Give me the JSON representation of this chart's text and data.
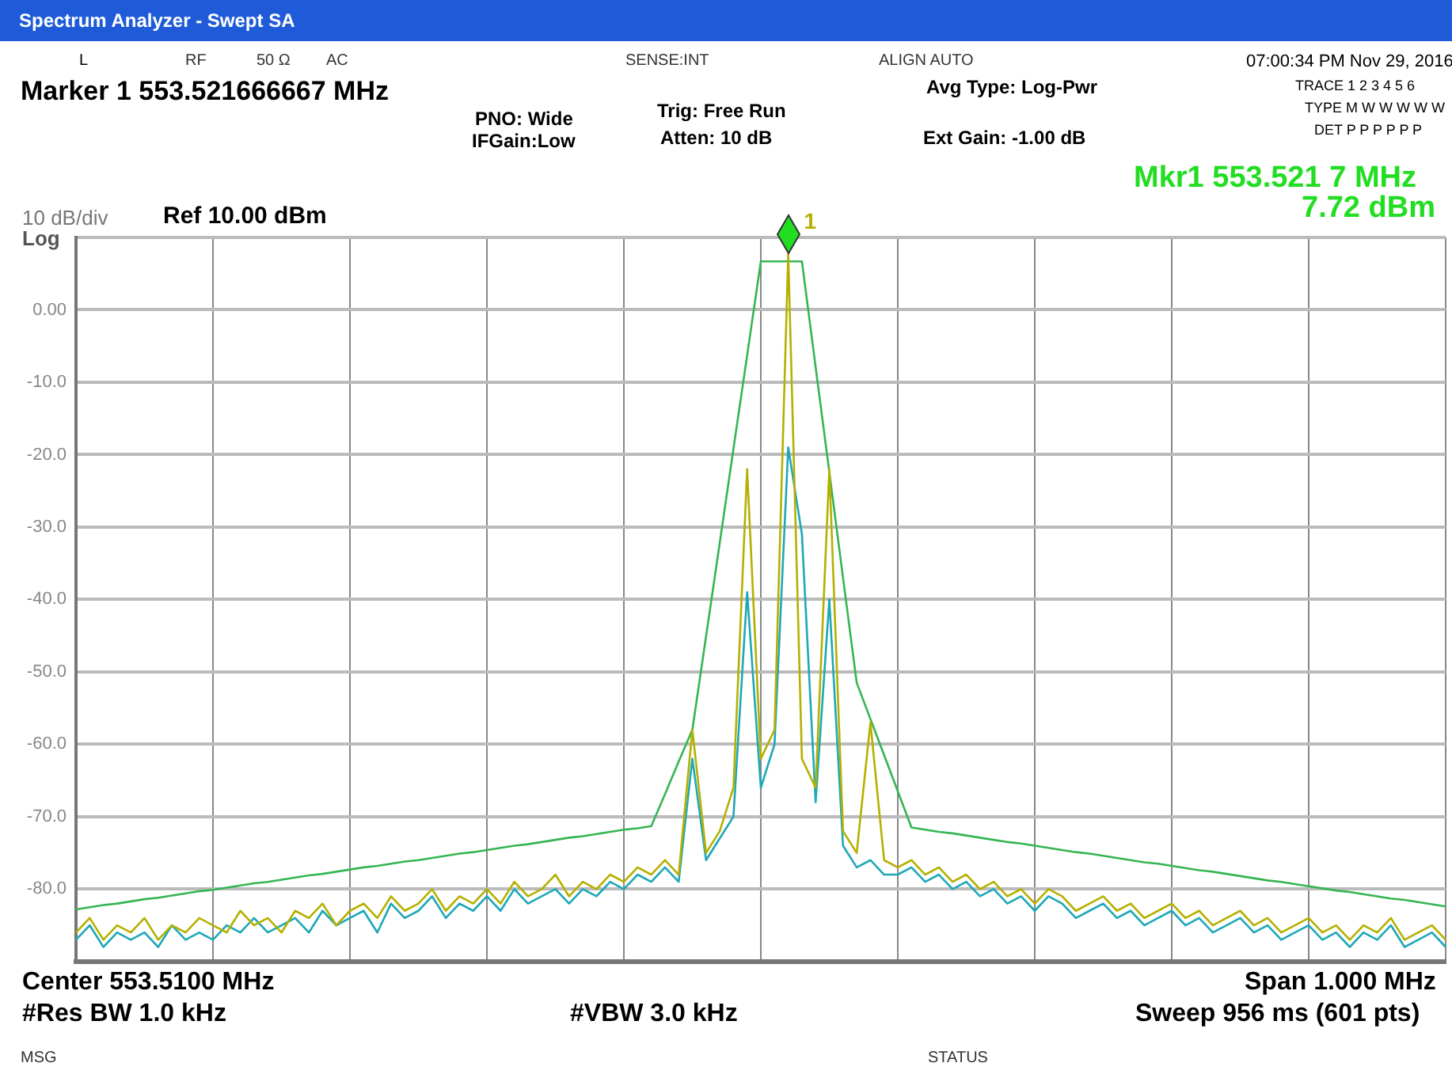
{
  "chart_data": {
    "type": "line",
    "title": "Spectrum Analyzer - Swept SA",
    "annotations": [
      "L",
      "RF",
      "50 Ω",
      "AC",
      "SENSE:INT",
      "ALIGN AUTO",
      "07:00:34 PM Nov 29, 2016",
      "Marker 1 553.521666667 MHz",
      "PNO: Wide",
      "IFGain:Low",
      "Trig: Free Run",
      "Atten: 10 dB",
      "Avg Type: Log-Pwr",
      "Ext Gain: -1.00 dB",
      "TRACE 1 2 3 4 5 6",
      "TYPE M W W W W W",
      "DET P P P P P P",
      "Mkr1 553.521 7 MHz",
      "7.72 dBm",
      "10 dB/div",
      "Ref 10.00 dBm",
      "Log",
      "Center 553.5100 MHz",
      "#Res BW 1.0 kHz",
      "#VBW 3.0 kHz",
      "Span 1.000 MHz",
      "Sweep  956 ms (601 pts)",
      "MSG",
      "STATUS",
      "1"
    ],
    "categories": [
      null,
      null,
      null,
      null,
      null,
      null,
      null,
      null,
      null,
      null,
      null,
      null,
      null,
      null,
      null,
      null,
      null,
      null,
      null,
      null,
      null,
      null,
      null,
      null,
      null,
      null,
      null,
      null,
      null,
      null,
      null,
      null,
      null,
      null,
      null,
      null,
      null,
      null,
      null,
      null,
      null,
      null,
      null,
      null,
      null,
      null,
      null,
      null,
      null,
      null,
      null,
      null,
      null,
      null,
      null,
      null,
      null,
      null,
      null,
      null,
      null,
      null,
      null,
      null,
      null,
      null,
      null,
      null,
      null,
      null,
      null,
      null,
      null,
      null,
      null,
      null,
      null,
      null,
      null,
      null,
      null,
      null,
      null,
      null,
      null,
      null,
      null,
      null,
      null,
      null,
      null,
      null,
      null,
      null,
      null,
      null,
      null,
      null,
      null,
      null,
      null
    ],
    "ylim": [
      -90,
      10
    ],
    "yticks": [
      {
        "value": -90,
        "label": null
      },
      {
        "value": -80,
        "label": "-80.0"
      },
      {
        "value": -70,
        "label": "-70.0"
      },
      {
        "value": -60,
        "label": "-60.0"
      },
      {
        "value": -50,
        "label": "-50.0"
      },
      {
        "value": -40,
        "label": "-40.0"
      },
      {
        "value": -30,
        "label": "-30.0"
      },
      {
        "value": -20,
        "label": "-20.0"
      },
      {
        "value": -10,
        "label": "-10.0"
      },
      {
        "value": 0,
        "label": "0.00"
      },
      {
        "value": 10,
        "label": null
      }
    ],
    "tick_labels": "y",
    "grid": true,
    "legend": false,
    "marker": "none",
    "series": [
      {
        "color": "#b5b000",
        "values": [
          -86,
          -84,
          -87,
          -85,
          -86,
          -84,
          -87,
          -85,
          -86,
          -84,
          -85,
          -86,
          -83,
          -85,
          -84,
          -86,
          -83,
          -84,
          -82,
          -85,
          -83,
          -82,
          -84,
          -81,
          -83,
          -82,
          -80,
          -83,
          -81,
          -82,
          -80,
          -82,
          -79,
          -81,
          -80,
          -78,
          -81,
          -79,
          -80,
          -78,
          -79,
          -77,
          -78,
          -76,
          -78,
          -58,
          -75,
          -72,
          -66,
          -22,
          -62,
          -58,
          7.72,
          -62,
          -66,
          -22,
          -72,
          -75,
          -57,
          -76,
          -77,
          -76,
          -78,
          -77,
          -79,
          -78,
          -80,
          -79,
          -81,
          -80,
          -82,
          -80,
          -81,
          -83,
          -82,
          -81,
          -83,
          -82,
          -84,
          -83,
          -82,
          -84,
          -83,
          -85,
          -84,
          -83,
          -85,
          -84,
          -86,
          -85,
          -84,
          -86,
          -85,
          -87,
          -85,
          -86,
          -84,
          -87,
          -86,
          -85,
          -87
        ]
      },
      {
        "color": "#1ea8b8",
        "values": [
          -87,
          -85,
          -88,
          -86,
          -87,
          -86,
          -88,
          -85,
          -87,
          -86,
          -87,
          -85,
          -86,
          -84,
          -86,
          -85,
          -84,
          -86,
          -83,
          -85,
          -84,
          -83,
          -86,
          -82,
          -84,
          -83,
          -81,
          -84,
          -82,
          -83,
          -81,
          -83,
          -80,
          -82,
          -81,
          -80,
          -82,
          -80,
          -81,
          -79,
          -80,
          -78,
          -79,
          -77,
          -79,
          -62,
          -76,
          -73,
          -70,
          -39,
          -66,
          -60,
          -19,
          -31,
          -68,
          -40,
          -74,
          -77,
          -76,
          -78,
          -78,
          -77,
          -79,
          -78,
          -80,
          -79,
          -81,
          -80,
          -82,
          -81,
          -83,
          -81,
          -82,
          -84,
          -83,
          -82,
          -84,
          -83,
          -85,
          -84,
          -83,
          -85,
          -84,
          -86,
          -85,
          -84,
          -86,
          -85,
          -87,
          -86,
          -85,
          -87,
          -86,
          -88,
          -86,
          -87,
          -85,
          -88,
          -87,
          -86,
          -88
        ]
      },
      {
        "color": "#35b552",
        "values": [
          -82.8,
          -82.5,
          -82.2,
          -82.0,
          -81.7,
          -81.4,
          -81.2,
          -80.9,
          -80.6,
          -80.3,
          -80.1,
          -79.8,
          -79.5,
          -79.2,
          -79.0,
          -78.7,
          -78.4,
          -78.1,
          -77.9,
          -77.6,
          -77.3,
          -77.0,
          -76.8,
          -76.5,
          -76.2,
          -76.0,
          -75.7,
          -75.4,
          -75.1,
          -74.9,
          -74.6,
          -74.3,
          -74.0,
          -73.8,
          -73.5,
          -73.2,
          -72.9,
          -72.7,
          -72.4,
          -72.1,
          -71.8,
          -71.6,
          -71.3,
          -66.9,
          -62.4,
          -58,
          -45.1,
          -32.2,
          -19.2,
          -6.3,
          6.7,
          6.7,
          6.7,
          6.7,
          -7.9,
          -22.4,
          -37.0,
          -51.5,
          -56.5,
          -61.5,
          -66.5,
          -71.5,
          -71.8,
          -72.1,
          -72.3,
          -72.6,
          -72.9,
          -73.2,
          -73.5,
          -73.7,
          -74.0,
          -74.3,
          -74.6,
          -74.9,
          -75.1,
          -75.4,
          -75.7,
          -76.0,
          -76.3,
          -76.5,
          -76.8,
          -77.1,
          -77.4,
          -77.6,
          -77.9,
          -78.2,
          -78.5,
          -78.8,
          -79.0,
          -79.3,
          -79.6,
          -79.9,
          -80.2,
          -80.4,
          -80.7,
          -81.0,
          -81.3,
          -81.5,
          -81.8,
          -82.1,
          -82.4
        ]
      }
    ]
  }
}
